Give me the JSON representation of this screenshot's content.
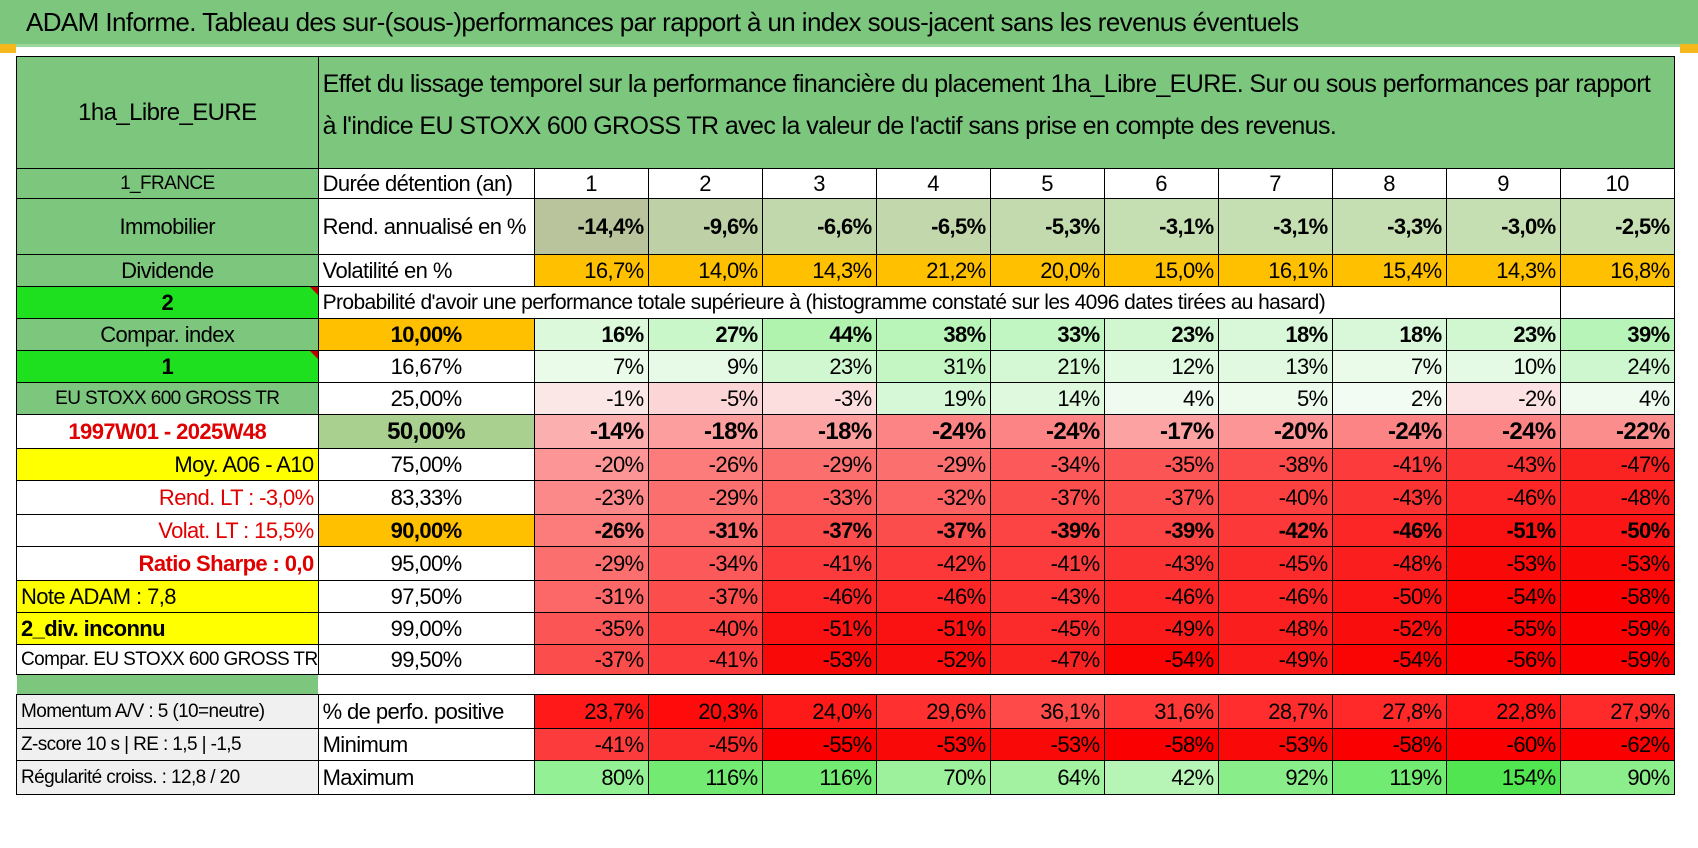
{
  "title": "ADAM Informe. Tableau des sur-(sous-)performances par rapport à un index sous-jacent sans les revenus éventuels",
  "fund_name": "1ha_Libre_EURE",
  "description": "Effet du lissage temporel sur la performance financière du placement 1ha_Libre_EURE. Sur ou sous performances par rapport à l'indice EU STOXX 600 GROSS TR avec la valeur de l'actif sans prise en compte des revenus.",
  "country": "1_FRANCE",
  "holding_label": "Durée détention (an)",
  "years": [
    "1",
    "2",
    "3",
    "4",
    "5",
    "6",
    "7",
    "8",
    "9",
    "10"
  ],
  "category": "Immobilier",
  "rend_label": "Rend. annualisé en %",
  "rend_values": [
    "-14,4%",
    "-9,6%",
    "-6,6%",
    "-6,5%",
    "-5,3%",
    "-3,1%",
    "-3,1%",
    "-3,3%",
    "-3,0%",
    "-2,5%"
  ],
  "dividend_label": "Dividende",
  "vol_label": "Volatilité en %",
  "vol_values": [
    "16,7%",
    "14,0%",
    "14,3%",
    "21,2%",
    "20,0%",
    "15,0%",
    "16,1%",
    "15,4%",
    "14,3%",
    "16,8%"
  ],
  "selector_2": "2",
  "prob_header": "Probabilité d'avoir une performance totale supérieure à (histogramme constaté sur les 4096 dates tirées au hasard)",
  "compar_index_label": "Compar. index",
  "selector_1": "1",
  "index_name": "EU STOXX 600 GROSS TR",
  "period": "1997W01 - 2025W48",
  "moy": "Moy. A06 - A10",
  "rend_lt": "Rend. LT :    -3,0%",
  "volat_lt": "Volat. LT :    15,5%",
  "sharpe": "Ratio Sharpe :     0,0",
  "note": "Note ADAM : 7,8",
  "div_inconnu": "2_div. inconnu",
  "compar_full": "Compar. EU STOXX 600 GROSS TR",
  "prob_rows": [
    {
      "threshold": "10,00%",
      "values": [
        "16%",
        "27%",
        "44%",
        "38%",
        "33%",
        "23%",
        "18%",
        "18%",
        "23%",
        "39%"
      ]
    },
    {
      "threshold": "16,67%",
      "values": [
        "7%",
        "9%",
        "23%",
        "31%",
        "21%",
        "12%",
        "13%",
        "7%",
        "10%",
        "24%"
      ]
    },
    {
      "threshold": "25,00%",
      "values": [
        "-1%",
        "-5%",
        "-3%",
        "19%",
        "14%",
        "4%",
        "5%",
        "2%",
        "-2%",
        "4%"
      ]
    },
    {
      "threshold": "50,00%",
      "values": [
        "-14%",
        "-18%",
        "-18%",
        "-24%",
        "-24%",
        "-17%",
        "-20%",
        "-24%",
        "-24%",
        "-22%"
      ]
    },
    {
      "threshold": "75,00%",
      "values": [
        "-20%",
        "-26%",
        "-29%",
        "-29%",
        "-34%",
        "-35%",
        "-38%",
        "-41%",
        "-43%",
        "-47%"
      ]
    },
    {
      "threshold": "83,33%",
      "values": [
        "-23%",
        "-29%",
        "-33%",
        "-32%",
        "-37%",
        "-37%",
        "-40%",
        "-43%",
        "-46%",
        "-48%"
      ]
    },
    {
      "threshold": "90,00%",
      "values": [
        "-26%",
        "-31%",
        "-37%",
        "-37%",
        "-39%",
        "-39%",
        "-42%",
        "-46%",
        "-51%",
        "-50%"
      ]
    },
    {
      "threshold": "95,00%",
      "values": [
        "-29%",
        "-34%",
        "-41%",
        "-42%",
        "-41%",
        "-43%",
        "-45%",
        "-48%",
        "-53%",
        "-53%"
      ]
    },
    {
      "threshold": "97,50%",
      "values": [
        "-31%",
        "-37%",
        "-46%",
        "-46%",
        "-43%",
        "-46%",
        "-46%",
        "-50%",
        "-54%",
        "-58%"
      ]
    },
    {
      "threshold": "99,00%",
      "values": [
        "-35%",
        "-40%",
        "-51%",
        "-51%",
        "-45%",
        "-49%",
        "-48%",
        "-52%",
        "-55%",
        "-59%"
      ]
    },
    {
      "threshold": "99,50%",
      "values": [
        "-37%",
        "-41%",
        "-53%",
        "-52%",
        "-47%",
        "-54%",
        "-49%",
        "-54%",
        "-56%",
        "-59%"
      ]
    }
  ],
  "momentum": "Momentum A/V : 5 (10=neutre)",
  "pos_label": "% de perfo. positive",
  "pos_values": [
    "23,7%",
    "20,3%",
    "24,0%",
    "29,6%",
    "36,1%",
    "31,6%",
    "28,7%",
    "27,8%",
    "22,8%",
    "27,9%"
  ],
  "zscore": "Z-score 10 s | RE : 1,5 | -1,5",
  "min_label": "Minimum",
  "min_values": [
    "-41%",
    "-45%",
    "-55%",
    "-53%",
    "-53%",
    "-58%",
    "-53%",
    "-58%",
    "-60%",
    "-62%"
  ],
  "regularite": "Régularité croiss. : 12,8 / 20",
  "max_label": "Maximum",
  "max_values": [
    "80%",
    "116%",
    "116%",
    "70%",
    "64%",
    "42%",
    "92%",
    "119%",
    "154%",
    "90%"
  ],
  "colors": {
    "header_green": "#7cc67e",
    "bright_green": "#1fe01f",
    "highlight_yellow": "#ffff00",
    "volatility_orange": "#ffc000",
    "negative_red": "#ff0000",
    "positive_green": "#63be7b",
    "text_red": "#e00000"
  }
}
